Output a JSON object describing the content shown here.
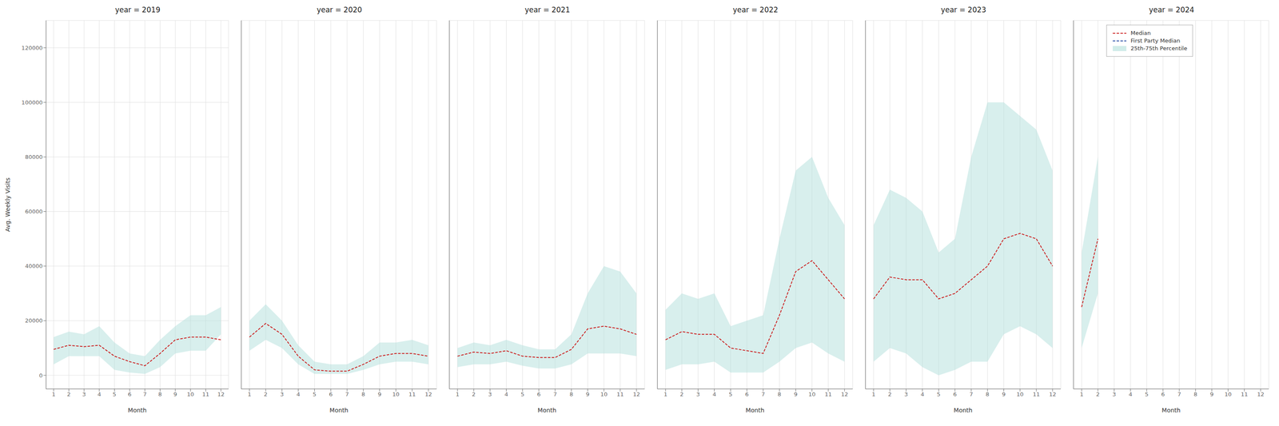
{
  "chart_data": [
    {
      "type": "line",
      "title": "year = 2019",
      "xlabel": "Month",
      "ylabel": "Avg. Weekly Visits",
      "x": [
        1,
        2,
        3,
        4,
        5,
        6,
        7,
        8,
        9,
        10,
        11,
        12
      ],
      "xlim": [
        0.5,
        12.5
      ],
      "xticks": [
        1,
        2,
        3,
        4,
        5,
        6,
        7,
        8,
        9,
        10,
        11,
        12
      ],
      "ylim": [
        -5000,
        130000
      ],
      "yticks": [
        0,
        20000,
        40000,
        60000,
        80000,
        100000,
        120000
      ],
      "grid": true,
      "series": [
        {
          "name": "Median",
          "type": "line",
          "color": "#cc2222",
          "line_style": "dashed",
          "values": [
            9500,
            11000,
            10500,
            11000,
            7000,
            5000,
            3500,
            8000,
            13000,
            14000,
            14000,
            13000
          ]
        },
        {
          "name": "25th-75th Percentile",
          "type": "area",
          "color": "#b2dfdb",
          "values": [
            [
              4000,
              14000
            ],
            [
              7000,
              16000
            ],
            [
              7000,
              15000
            ],
            [
              7000,
              18000
            ],
            [
              2000,
              12000
            ],
            [
              1000,
              8000
            ],
            [
              500,
              7000
            ],
            [
              3000,
              13000
            ],
            [
              8000,
              18000
            ],
            [
              9000,
              22000
            ],
            [
              9000,
              22000
            ],
            [
              15000,
              25000
            ]
          ]
        }
      ]
    },
    {
      "type": "line",
      "title": "year = 2020",
      "xlabel": "Month",
      "x": [
        1,
        2,
        3,
        4,
        5,
        6,
        7,
        8,
        9,
        10,
        11,
        12
      ],
      "xlim": [
        0.5,
        12.5
      ],
      "xticks": [
        1,
        2,
        3,
        4,
        5,
        6,
        7,
        8,
        9,
        10,
        11,
        12
      ],
      "ylim": [
        -5000,
        130000
      ],
      "yticks": [
        0,
        20000,
        40000,
        60000,
        80000,
        100000,
        120000
      ],
      "grid": true,
      "tick_labels": "x",
      "series": [
        {
          "name": "Median",
          "type": "line",
          "color": "#cc2222",
          "line_style": "dashed",
          "values": [
            14000,
            19000,
            15000,
            7000,
            2000,
            1500,
            1500,
            4000,
            7000,
            8000,
            8000,
            7000
          ]
        },
        {
          "name": "25th-75th Percentile",
          "type": "area",
          "color": "#b2dfdb",
          "values": [
            [
              9000,
              20000
            ],
            [
              13000,
              26000
            ],
            [
              10000,
              20000
            ],
            [
              4000,
              11000
            ],
            [
              500,
              5000
            ],
            [
              500,
              4000
            ],
            [
              500,
              4000
            ],
            [
              2000,
              7000
            ],
            [
              4000,
              12000
            ],
            [
              5000,
              12000
            ],
            [
              5000,
              13000
            ],
            [
              4000,
              11000
            ]
          ]
        }
      ]
    },
    {
      "type": "line",
      "title": "year = 2021",
      "xlabel": "Month",
      "x": [
        1,
        2,
        3,
        4,
        5,
        6,
        7,
        8,
        9,
        10,
        11,
        12
      ],
      "xlim": [
        0.5,
        12.5
      ],
      "xticks": [
        1,
        2,
        3,
        4,
        5,
        6,
        7,
        8,
        9,
        10,
        11,
        12
      ],
      "ylim": [
        -5000,
        130000
      ],
      "yticks": [
        0,
        20000,
        40000,
        60000,
        80000,
        100000,
        120000
      ],
      "grid": true,
      "tick_labels": "x",
      "series": [
        {
          "name": "Median",
          "type": "line",
          "color": "#cc2222",
          "line_style": "dashed",
          "values": [
            7000,
            8500,
            8000,
            9000,
            7000,
            6500,
            6500,
            9500,
            17000,
            18000,
            17000,
            15000
          ]
        },
        {
          "name": "25th-75th Percentile",
          "type": "area",
          "color": "#b2dfdb",
          "values": [
            [
              3000,
              10000
            ],
            [
              4000,
              12000
            ],
            [
              4000,
              11000
            ],
            [
              5000,
              13000
            ],
            [
              3500,
              11000
            ],
            [
              2500,
              9500
            ],
            [
              2500,
              9500
            ],
            [
              4000,
              15000
            ],
            [
              8000,
              30000
            ],
            [
              8000,
              40000
            ],
            [
              8000,
              38000
            ],
            [
              7000,
              30000
            ]
          ]
        }
      ]
    },
    {
      "type": "line",
      "title": "year = 2022",
      "xlabel": "Month",
      "x": [
        1,
        2,
        3,
        4,
        5,
        6,
        7,
        8,
        9,
        10,
        11,
        12
      ],
      "xlim": [
        0.5,
        12.5
      ],
      "xticks": [
        1,
        2,
        3,
        4,
        5,
        6,
        7,
        8,
        9,
        10,
        11,
        12
      ],
      "ylim": [
        -5000,
        130000
      ],
      "yticks": [
        0,
        20000,
        40000,
        60000,
        80000,
        100000,
        120000
      ],
      "grid": true,
      "tick_labels": "x",
      "series": [
        {
          "name": "Median",
          "type": "line",
          "color": "#cc2222",
          "line_style": "dashed",
          "values": [
            13000,
            16000,
            15000,
            15000,
            10000,
            9000,
            8000,
            22000,
            38000,
            42000,
            35000,
            28000
          ]
        },
        {
          "name": "25th-75th Percentile",
          "type": "area",
          "color": "#b2dfdb",
          "values": [
            [
              2000,
              24000
            ],
            [
              4000,
              30000
            ],
            [
              4000,
              28000
            ],
            [
              5000,
              30000
            ],
            [
              1000,
              18000
            ],
            [
              1000,
              20000
            ],
            [
              1000,
              22000
            ],
            [
              5000,
              50000
            ],
            [
              10000,
              75000
            ],
            [
              12000,
              80000
            ],
            [
              8000,
              65000
            ],
            [
              5000,
              55000
            ]
          ]
        }
      ]
    },
    {
      "type": "line",
      "title": "year = 2023",
      "xlabel": "Month",
      "x": [
        1,
        2,
        3,
        4,
        5,
        6,
        7,
        8,
        9,
        10,
        11,
        12
      ],
      "xlim": [
        0.5,
        12.5
      ],
      "xticks": [
        1,
        2,
        3,
        4,
        5,
        6,
        7,
        8,
        9,
        10,
        11,
        12
      ],
      "ylim": [
        -5000,
        130000
      ],
      "yticks": [
        0,
        20000,
        40000,
        60000,
        80000,
        100000,
        120000
      ],
      "grid": true,
      "tick_labels": "x",
      "series": [
        {
          "name": "Median",
          "type": "line",
          "color": "#cc2222",
          "line_style": "dashed",
          "values": [
            28000,
            36000,
            35000,
            35000,
            28000,
            30000,
            35000,
            40000,
            50000,
            52000,
            50000,
            40000
          ]
        },
        {
          "name": "25th-75th Percentile",
          "type": "area",
          "color": "#b2dfdb",
          "values": [
            [
              5000,
              55000
            ],
            [
              10000,
              68000
            ],
            [
              8000,
              65000
            ],
            [
              3000,
              60000
            ],
            [
              0,
              45000
            ],
            [
              2000,
              50000
            ],
            [
              5000,
              80000
            ],
            [
              5000,
              100000
            ],
            [
              15000,
              100000
            ],
            [
              18000,
              95000
            ],
            [
              15000,
              90000
            ],
            [
              10000,
              75000
            ]
          ]
        }
      ]
    },
    {
      "type": "line",
      "title": "year = 2024",
      "xlabel": "Month",
      "x": [
        1,
        2,
        3,
        4,
        5,
        6,
        7,
        8,
        9,
        10,
        11,
        12
      ],
      "xlim": [
        0.5,
        12.5
      ],
      "xticks": [
        1,
        2,
        3,
        4,
        5,
        6,
        7,
        8,
        9,
        10,
        11,
        12
      ],
      "ylim": [
        -5000,
        130000
      ],
      "yticks": [
        0,
        20000,
        40000,
        60000,
        80000,
        100000,
        120000
      ],
      "grid": true,
      "tick_labels": "x",
      "legend": "upper left",
      "series": [
        {
          "name": "Median",
          "type": "line",
          "color": "#cc2222",
          "line_style": "dashed",
          "values": [
            25000,
            50000,
            null,
            null,
            null,
            null,
            null,
            null,
            null,
            null,
            null,
            null
          ]
        },
        {
          "name": "First Party Median",
          "type": "line",
          "color": "#3355aa",
          "line_style": "dashed",
          "values": [
            null,
            null,
            null,
            null,
            null,
            null,
            null,
            null,
            null,
            null,
            null,
            null
          ]
        },
        {
          "name": "25th-75th Percentile",
          "type": "area",
          "color": "#b2dfdb",
          "values": [
            [
              10000,
              45000
            ],
            [
              30000,
              80000
            ],
            null,
            null,
            null,
            null,
            null,
            null,
            null,
            null,
            null,
            null
          ]
        }
      ]
    }
  ]
}
